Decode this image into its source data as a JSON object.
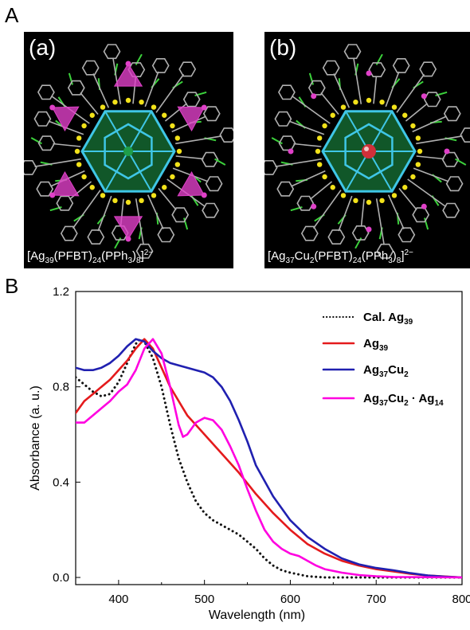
{
  "panel_A": {
    "letter": "A",
    "structures": [
      {
        "label": "(a)",
        "formula_html": "[Ag<sub>39</sub>(PFBT)<sub>24</sub>(PPh<sub>3</sub>)<sub>8</sub>]<sup>2−</sup>"
      },
      {
        "label": "(b)",
        "formula_html": "[Ag<sub>37</sub>Cu<sub>2</sub>(PFBT)<sub>24</sub>(PPh<sub>3</sub>)<sub>8</sub>]<sup>2−</sup>"
      }
    ],
    "colors": {
      "background": "#000000",
      "cage": "#3fc6e6",
      "core": "#1f9e4a",
      "tetra": "#e040c8",
      "sulfur": "#f2e21a",
      "ligand": "#b0b0b0",
      "fluorine": "#3cd23c",
      "center": "#d0303a"
    }
  },
  "panel_B": {
    "letter": "B"
  },
  "chart_data": {
    "type": "line",
    "xlabel": "Wavelength (nm)",
    "ylabel": "Absorbance (a. u.)",
    "xlim": [
      350,
      800
    ],
    "ylim": [
      -0.03,
      1.2
    ],
    "xticks": [
      400,
      500,
      600,
      700,
      800
    ],
    "xtick_labels": [
      "400",
      "500",
      "600",
      "700",
      "800"
    ],
    "yticks": [
      0.0,
      0.4,
      0.8,
      1.2
    ],
    "ytick_labels": [
      "0.0",
      "0.4",
      "0.8",
      "1.2"
    ],
    "legend_position": "top-right",
    "series": [
      {
        "name": "Cal. Ag39",
        "legend_main": "Cal. Ag",
        "legend_sub": "39",
        "legend_tail": "",
        "color": "#111111",
        "style": "dotted",
        "points": [
          [
            350,
            0.84
          ],
          [
            360,
            0.81
          ],
          [
            370,
            0.78
          ],
          [
            380,
            0.76
          ],
          [
            390,
            0.77
          ],
          [
            400,
            0.82
          ],
          [
            410,
            0.9
          ],
          [
            420,
            0.98
          ],
          [
            425,
            1.0
          ],
          [
            430,
            0.99
          ],
          [
            440,
            0.92
          ],
          [
            450,
            0.8
          ],
          [
            460,
            0.64
          ],
          [
            470,
            0.5
          ],
          [
            480,
            0.4
          ],
          [
            490,
            0.32
          ],
          [
            500,
            0.27
          ],
          [
            510,
            0.24
          ],
          [
            520,
            0.22
          ],
          [
            530,
            0.2
          ],
          [
            540,
            0.18
          ],
          [
            550,
            0.15
          ],
          [
            560,
            0.12
          ],
          [
            570,
            0.08
          ],
          [
            580,
            0.05
          ],
          [
            590,
            0.03
          ],
          [
            600,
            0.02
          ],
          [
            620,
            0.005
          ],
          [
            640,
            0.0
          ],
          [
            700,
            0.0
          ],
          [
            800,
            0.0
          ]
        ]
      },
      {
        "name": "Ag39",
        "legend_main": "Ag",
        "legend_sub": "39",
        "legend_tail": "",
        "color": "#e41a1c",
        "style": "solid",
        "points": [
          [
            350,
            0.69
          ],
          [
            360,
            0.74
          ],
          [
            370,
            0.77
          ],
          [
            380,
            0.8
          ],
          [
            390,
            0.83
          ],
          [
            400,
            0.87
          ],
          [
            410,
            0.91
          ],
          [
            420,
            0.96
          ],
          [
            430,
            1.0
          ],
          [
            440,
            0.96
          ],
          [
            450,
            0.88
          ],
          [
            460,
            0.8
          ],
          [
            470,
            0.74
          ],
          [
            480,
            0.68
          ],
          [
            500,
            0.6
          ],
          [
            520,
            0.52
          ],
          [
            540,
            0.44
          ],
          [
            560,
            0.35
          ],
          [
            580,
            0.27
          ],
          [
            600,
            0.2
          ],
          [
            620,
            0.14
          ],
          [
            640,
            0.1
          ],
          [
            660,
            0.07
          ],
          [
            680,
            0.05
          ],
          [
            700,
            0.035
          ],
          [
            720,
            0.025
          ],
          [
            740,
            0.015
          ],
          [
            760,
            0.008
          ],
          [
            780,
            0.004
          ],
          [
            800,
            0.0
          ]
        ]
      },
      {
        "name": "Ag37Cu2",
        "legend_main": "Ag",
        "legend_sub": "37",
        "legend_tail": "Cu",
        "legend_sub2": "2",
        "color": "#2020b0",
        "style": "solid",
        "points": [
          [
            350,
            0.88
          ],
          [
            360,
            0.87
          ],
          [
            370,
            0.87
          ],
          [
            380,
            0.88
          ],
          [
            390,
            0.9
          ],
          [
            400,
            0.93
          ],
          [
            410,
            0.97
          ],
          [
            420,
            1.0
          ],
          [
            430,
            0.99
          ],
          [
            440,
            0.95
          ],
          [
            450,
            0.92
          ],
          [
            460,
            0.9
          ],
          [
            470,
            0.89
          ],
          [
            480,
            0.88
          ],
          [
            490,
            0.87
          ],
          [
            500,
            0.86
          ],
          [
            510,
            0.84
          ],
          [
            520,
            0.8
          ],
          [
            530,
            0.74
          ],
          [
            540,
            0.66
          ],
          [
            550,
            0.57
          ],
          [
            560,
            0.47
          ],
          [
            580,
            0.34
          ],
          [
            600,
            0.24
          ],
          [
            620,
            0.17
          ],
          [
            640,
            0.12
          ],
          [
            660,
            0.08
          ],
          [
            680,
            0.055
          ],
          [
            700,
            0.04
          ],
          [
            720,
            0.03
          ],
          [
            740,
            0.018
          ],
          [
            760,
            0.008
          ],
          [
            780,
            0.003
          ],
          [
            800,
            0.0
          ]
        ]
      },
      {
        "name": "Ag37Cu2 · Ag14",
        "legend_main": "Ag",
        "legend_sub": "37",
        "legend_tail": "Cu",
        "legend_sub2": "2",
        "legend_extra": " · Ag",
        "legend_sub3": "14",
        "color": "#ff00e0",
        "style": "solid",
        "points": [
          [
            350,
            0.65
          ],
          [
            360,
            0.65
          ],
          [
            370,
            0.68
          ],
          [
            380,
            0.71
          ],
          [
            390,
            0.74
          ],
          [
            400,
            0.78
          ],
          [
            410,
            0.81
          ],
          [
            420,
            0.87
          ],
          [
            430,
            0.96
          ],
          [
            440,
            1.0
          ],
          [
            450,
            0.94
          ],
          [
            460,
            0.8
          ],
          [
            470,
            0.64
          ],
          [
            475,
            0.59
          ],
          [
            480,
            0.6
          ],
          [
            490,
            0.65
          ],
          [
            500,
            0.67
          ],
          [
            510,
            0.66
          ],
          [
            520,
            0.62
          ],
          [
            530,
            0.55
          ],
          [
            540,
            0.47
          ],
          [
            550,
            0.37
          ],
          [
            560,
            0.28
          ],
          [
            570,
            0.2
          ],
          [
            580,
            0.15
          ],
          [
            590,
            0.12
          ],
          [
            600,
            0.1
          ],
          [
            610,
            0.09
          ],
          [
            620,
            0.07
          ],
          [
            630,
            0.05
          ],
          [
            640,
            0.035
          ],
          [
            660,
            0.02
          ],
          [
            680,
            0.01
          ],
          [
            700,
            0.005
          ],
          [
            720,
            0.002
          ],
          [
            800,
            0.0
          ]
        ]
      }
    ]
  }
}
